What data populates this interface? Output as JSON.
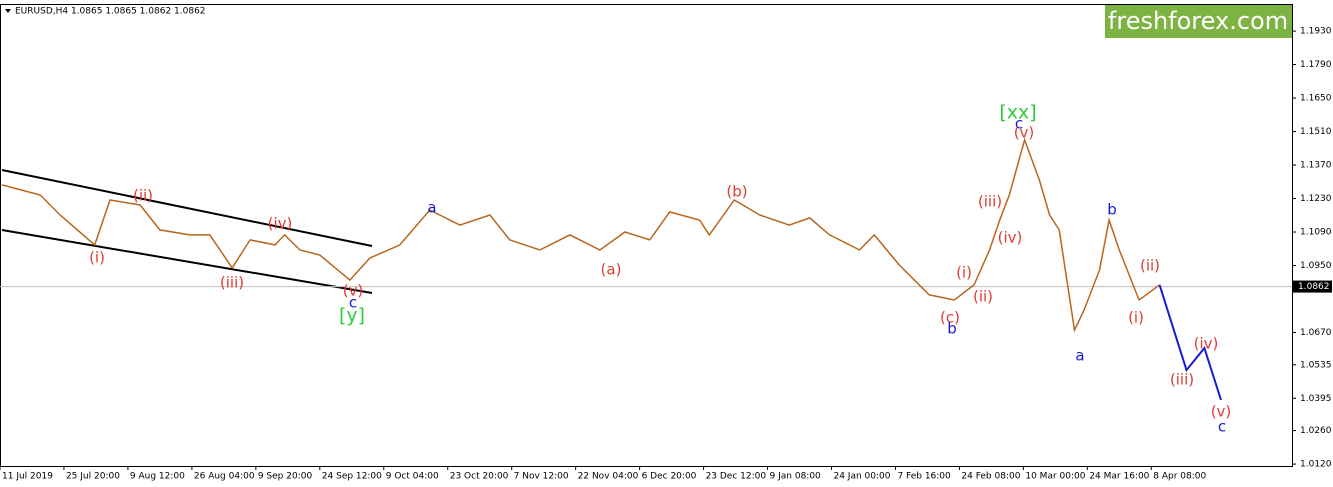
{
  "chart_data": {
    "type": "line",
    "header": "EURUSD,H4  1.0865 1.0865 1.0862 1.0862",
    "logo": "freshforex.com",
    "xlim": [
      0,
      202
    ],
    "ylim": [
      1.0112,
      1.2039
    ],
    "xticks": [
      {
        "value": 0,
        "label": "11 Jul 2019"
      },
      {
        "value": 10,
        "label": "25 Jul 20:00"
      },
      {
        "value": 20,
        "label": "9 Aug 12:00"
      },
      {
        "value": 30,
        "label": "26 Aug 04:00"
      },
      {
        "value": 40,
        "label": "9 Sep 20:00"
      },
      {
        "value": 50,
        "label": "24 Sep 12:00"
      },
      {
        "value": 60,
        "label": "9 Oct 04:00"
      },
      {
        "value": 70,
        "label": "23 Oct 20:00"
      },
      {
        "value": 80,
        "label": "7 Nov 12:00"
      },
      {
        "value": 90,
        "label": "22 Nov 04:00"
      },
      {
        "value": 100,
        "label": "6 Dec 20:00"
      },
      {
        "value": 110,
        "label": "23 Dec 12:00"
      },
      {
        "value": 120,
        "label": "9 Jan 08:00"
      },
      {
        "value": 130,
        "label": "24 Jan 00:00"
      },
      {
        "value": 140,
        "label": "7 Feb 16:00"
      },
      {
        "value": 150,
        "label": "24 Feb 08:00"
      },
      {
        "value": 160,
        "label": "10 Mar 00:00"
      },
      {
        "value": 170,
        "label": "24 Mar 16:00"
      },
      {
        "value": 180,
        "label": "8 Apr 08:00"
      }
    ],
    "yticks": [
      {
        "value": 1.193,
        "label": "1.1930"
      },
      {
        "value": 1.179,
        "label": "1.1790"
      },
      {
        "value": 1.165,
        "label": "1.1650"
      },
      {
        "value": 1.151,
        "label": "1.1510"
      },
      {
        "value": 1.137,
        "label": "1.1370"
      },
      {
        "value": 1.123,
        "label": "1.1230"
      },
      {
        "value": 1.109,
        "label": "1.1090"
      },
      {
        "value": 1.095,
        "label": "1.0950"
      },
      {
        "value": 1.067,
        "label": "1.0670"
      },
      1.0535,
      {
        "value": 1.0395,
        "label": "1.0395"
      },
      {
        "value": 1.026,
        "label": "1.0260"
      },
      {
        "value": 1.012,
        "label": "1.0120"
      }
    ],
    "last_price": {
      "value": 1.0862,
      "label": "1.0862"
    },
    "series": [
      {
        "color": "#b8661e",
        "x": [
          0.3,
          6.3,
          9.4,
          14.8,
          17.2,
          21.9,
          25,
          29.7,
          32.8,
          36.3,
          39.1,
          43,
          44.5,
          46.9,
          50,
          54.7,
          57.8,
          62.5,
          67.2,
          71.9,
          76.6,
          79.7,
          84.4,
          89.1,
          93.8,
          97.7,
          101.6,
          104.7,
          109.4,
          110.9,
          114.8,
          118.8,
          123.4,
          126.6,
          129.7,
          134.4,
          136.7,
          140.6,
          145.3,
          149.2,
          152.3,
          154.7,
          156.3,
          157.8,
          160.2,
          162.5,
          164.1,
          165.6,
          168,
          169.5,
          171.9,
          173.4,
          175,
          178.1,
          181.3
        ],
        "values": [
          1.1287,
          1.1245,
          1.1161,
          1.1036,
          1.1224,
          1.1203,
          1.1099,
          1.1078,
          1.1078,
          1.094,
          1.1057,
          1.1036,
          1.1078,
          1.1015,
          1.0994,
          1.0889,
          1.0981,
          1.1036,
          1.1182,
          1.1119,
          1.1161,
          1.1057,
          1.1015,
          1.1078,
          1.1015,
          1.109,
          1.1057,
          1.1174,
          1.114,
          1.1078,
          1.1224,
          1.1161,
          1.1119,
          1.1149,
          1.1078,
          1.1015,
          1.1078,
          1.0952,
          1.0827,
          1.0806,
          1.0869,
          1.1015,
          1.114,
          1.1245,
          1.1475,
          1.1307,
          1.1161,
          1.1099,
          1.068,
          1.0764,
          1.0931,
          1.114,
          1.1015,
          1.0806,
          1.0869
        ]
      },
      {
        "color": "#1a1ad0",
        "x": [
          181.3,
          185.5,
          188.3,
          190.9
        ],
        "values": [
          1.0869,
          1.0513,
          1.0605,
          1.0388
        ]
      }
    ],
    "annotations": [
      {
        "text": "(i)",
        "color": "#e03c31"
      },
      {
        "text": "(ii)",
        "color": "#e03c31"
      },
      {
        "text": "(iii)",
        "color": "#e03c31"
      },
      {
        "text": "(iv)",
        "color": "#e03c31"
      },
      {
        "text": "(v)",
        "color": "#e03c31"
      },
      {
        "text": "c",
        "color": "#1a1ad0"
      },
      {
        "text": "[y]",
        "color": "#2ecc40"
      },
      {
        "text": "a",
        "color": "#1a1ad0"
      },
      {
        "text": "(a)",
        "color": "#e03c31"
      },
      {
        "text": "(b)",
        "color": "#e03c31"
      },
      {
        "text": "(c)",
        "color": "#e03c31"
      },
      {
        "text": "b",
        "color": "#1a1ad0"
      },
      {
        "text": "(i)",
        "color": "#e03c31"
      },
      {
        "text": "(ii)",
        "color": "#e03c31"
      },
      {
        "text": "(iii)",
        "color": "#e03c31"
      },
      {
        "text": "(iv)",
        "color": "#e03c31"
      },
      {
        "text": "[xx]",
        "color": "#2ecc40"
      },
      {
        "text": "c",
        "color": "#1a1ad0"
      },
      {
        "text": "(v)",
        "color": "#e03c31"
      },
      {
        "text": "a",
        "color": "#1a1ad0"
      },
      {
        "text": "b",
        "color": "#1a1ad0"
      },
      {
        "text": "(ii)",
        "color": "#e03c31"
      },
      {
        "text": "(i)",
        "color": "#e03c31"
      },
      {
        "text": "(iv)",
        "color": "#e03c31"
      },
      {
        "text": "(iii)",
        "color": "#e03c31"
      },
      {
        "text": "(v)",
        "color": "#e03c31"
      },
      {
        "text": "c",
        "color": "#1a1ad0"
      }
    ]
  }
}
